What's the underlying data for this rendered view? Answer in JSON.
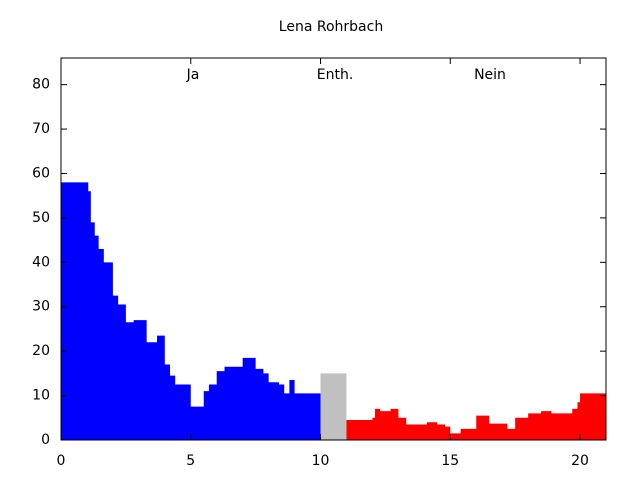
{
  "chart_data": {
    "type": "area",
    "title": "Lena Rohrbach",
    "drawstyle": "steps-post",
    "annotations": [
      "Ja",
      "Enth.",
      "Nein"
    ],
    "xlim": [
      0,
      21
    ],
    "xticks": [
      0,
      5,
      10,
      15,
      20
    ],
    "ylim": [
      0,
      86
    ],
    "yticks": [
      0,
      10,
      20,
      30,
      40,
      50,
      60,
      70,
      80
    ],
    "grid": false,
    "series": [
      {
        "color": "#0000ff",
        "x": [
          0,
          1.0,
          1.05,
          1.15,
          1.3,
          1.45,
          1.65,
          2.0,
          2.2,
          2.5,
          2.8,
          3.3,
          3.7,
          4.0,
          4.2,
          4.4,
          5.0,
          5.5,
          5.7,
          6.0,
          6.3,
          6.8,
          7.0,
          7.5,
          7.8,
          8.0,
          8.4,
          8.6,
          8.8,
          9.0,
          10
        ],
        "values": [
          58,
          58,
          56,
          49,
          46,
          43,
          40,
          32.5,
          30.5,
          26.5,
          27,
          22,
          23.5,
          17,
          14.5,
          12.5,
          7.5,
          11,
          12.5,
          15.5,
          16.5,
          16.5,
          18.5,
          16,
          15,
          13,
          12.5,
          10.5,
          13.5,
          10.5,
          10.5
        ]
      },
      {
        "color": "#c0c0c0",
        "x": [
          10,
          11
        ],
        "values": [
          15,
          15
        ]
      },
      {
        "color": "#ff0000",
        "x": [
          11,
          12,
          12.1,
          12.3,
          12.7,
          13.0,
          13.3,
          13.7,
          14.1,
          14.5,
          14.8,
          15.0,
          15.4,
          16.0,
          16.5,
          17.2,
          17.5,
          18.0,
          18.5,
          18.9,
          19.4,
          19.7,
          19.9,
          20.0,
          21
        ],
        "values": [
          4.5,
          5,
          7,
          6.5,
          7,
          5,
          3.5,
          3.5,
          4,
          3.5,
          3,
          1.5,
          2.5,
          5.5,
          3.7,
          2.5,
          5,
          6,
          6.5,
          6,
          6,
          7,
          8.5,
          10.5,
          10.5
        ]
      }
    ]
  }
}
